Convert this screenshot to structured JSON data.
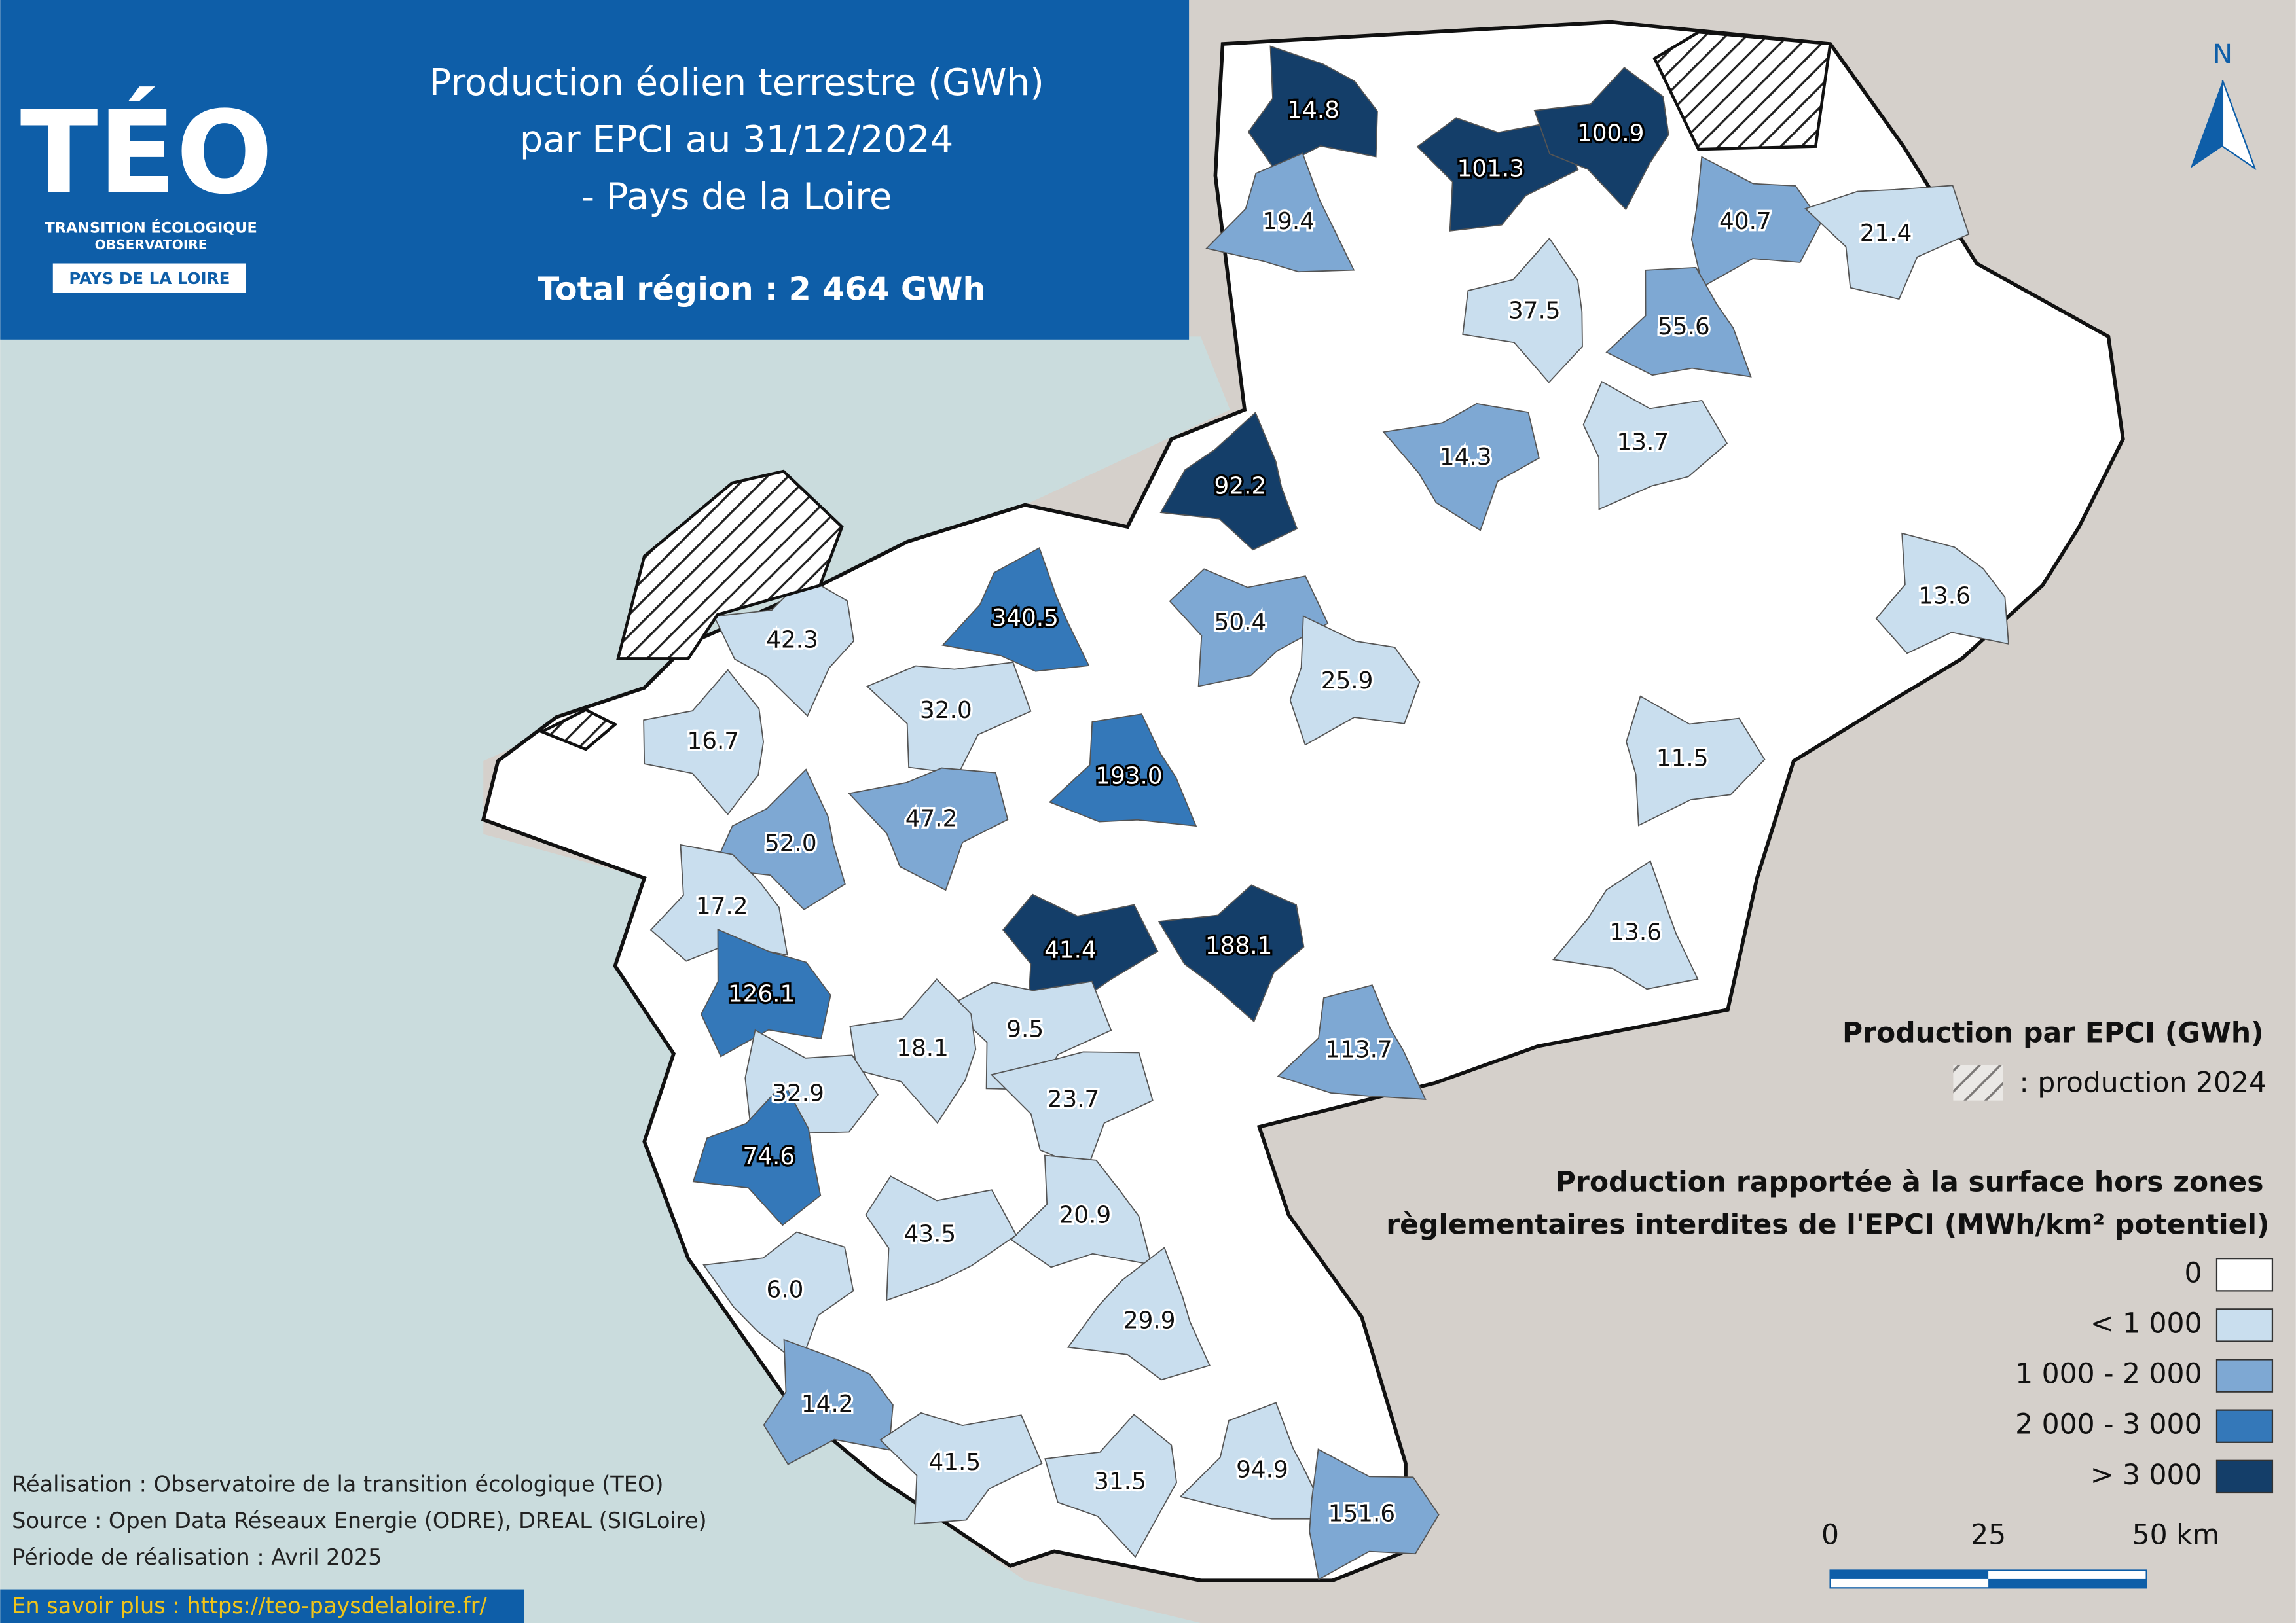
{
  "header": {
    "logo": {
      "name": "TÉO",
      "line1": "TRANSITION ÉCOLOGIQUE",
      "line2": "OBSERVATOIRE",
      "region": "PAYS DE LA LOIRE"
    },
    "title": [
      "Production éolien terrestre (GWh)",
      "par EPCI au 31/12/2024",
      "- Pays de la Loire"
    ],
    "total": "Total région : 2 464 GWh"
  },
  "map": {
    "north": "N",
    "epci": [
      {
        "label": "14.8",
        "class": 4
      },
      {
        "label": "101.3",
        "class": 4
      },
      {
        "label": "100.9",
        "class": 4
      },
      {
        "label": "19.4",
        "class": 2
      },
      {
        "label": "40.7",
        "class": 2
      },
      {
        "label": "21.4",
        "class": 1
      },
      {
        "label": "37.5",
        "class": 1
      },
      {
        "label": "55.6",
        "class": 2
      },
      {
        "label": "13.7",
        "class": 1
      },
      {
        "label": "14.3",
        "class": 2
      },
      {
        "label": "92.2",
        "class": 4
      },
      {
        "label": "13.6",
        "class": 1
      },
      {
        "label": "50.4",
        "class": 2
      },
      {
        "label": "42.3",
        "class": 1
      },
      {
        "label": "340.5",
        "class": 3
      },
      {
        "label": "25.9",
        "class": 1
      },
      {
        "label": "32.0",
        "class": 1
      },
      {
        "label": "16.7",
        "class": 1
      },
      {
        "label": "193.0",
        "class": 3
      },
      {
        "label": "11.5",
        "class": 1
      },
      {
        "label": "47.2",
        "class": 2
      },
      {
        "label": "52.0",
        "class": 2
      },
      {
        "label": "17.2",
        "class": 1
      },
      {
        "label": "41.4",
        "class": 4
      },
      {
        "label": "188.1",
        "class": 4
      },
      {
        "label": "13.6",
        "class": 1
      },
      {
        "label": "126.1",
        "class": 3
      },
      {
        "label": "9.5",
        "class": 1
      },
      {
        "label": "18.1",
        "class": 1
      },
      {
        "label": "113.7",
        "class": 2
      },
      {
        "label": "32.9",
        "class": 1
      },
      {
        "label": "23.7",
        "class": 1
      },
      {
        "label": "74.6",
        "class": 3
      },
      {
        "label": "20.9",
        "class": 1
      },
      {
        "label": "43.5",
        "class": 1
      },
      {
        "label": "6.0",
        "class": 1
      },
      {
        "label": "29.9",
        "class": 1
      },
      {
        "label": "14.2",
        "class": 2
      },
      {
        "label": "41.5",
        "class": 1
      },
      {
        "label": "31.5",
        "class": 1
      },
      {
        "label": "94.9",
        "class": 1
      },
      {
        "label": "151.6",
        "class": 2
      }
    ]
  },
  "legend": {
    "title1": "Production par EPCI (GWh)",
    "hatch": ": production 2024",
    "title2": [
      "Production rapportée à la surface hors zones",
      "règlementaires interdites de l'EPCI (MWh/km² potentiel)"
    ],
    "classes": [
      {
        "label": "0",
        "color": "#ffffff"
      },
      {
        "label": "< 1 000",
        "color": "#c9deee"
      },
      {
        "label": "1 000 - 2 000",
        "color": "#7ea8d3"
      },
      {
        "label": "2 000 - 3 000",
        "color": "#3478b9"
      },
      {
        "label": "> 3 000",
        "color": "#143e69"
      }
    ]
  },
  "scale": {
    "ticks": [
      "0",
      "25",
      "50 km"
    ]
  },
  "footer": {
    "lines": [
      "Réalisation : Observatoire de la transition écologique (TEO)",
      "Source : Open Data Réseaux Energie (ODRE), DREAL (SIGLoire)",
      "Période de réalisation : Avril 2025"
    ],
    "link": "En savoir plus : https://teo-paysdelaloire.fr/"
  }
}
